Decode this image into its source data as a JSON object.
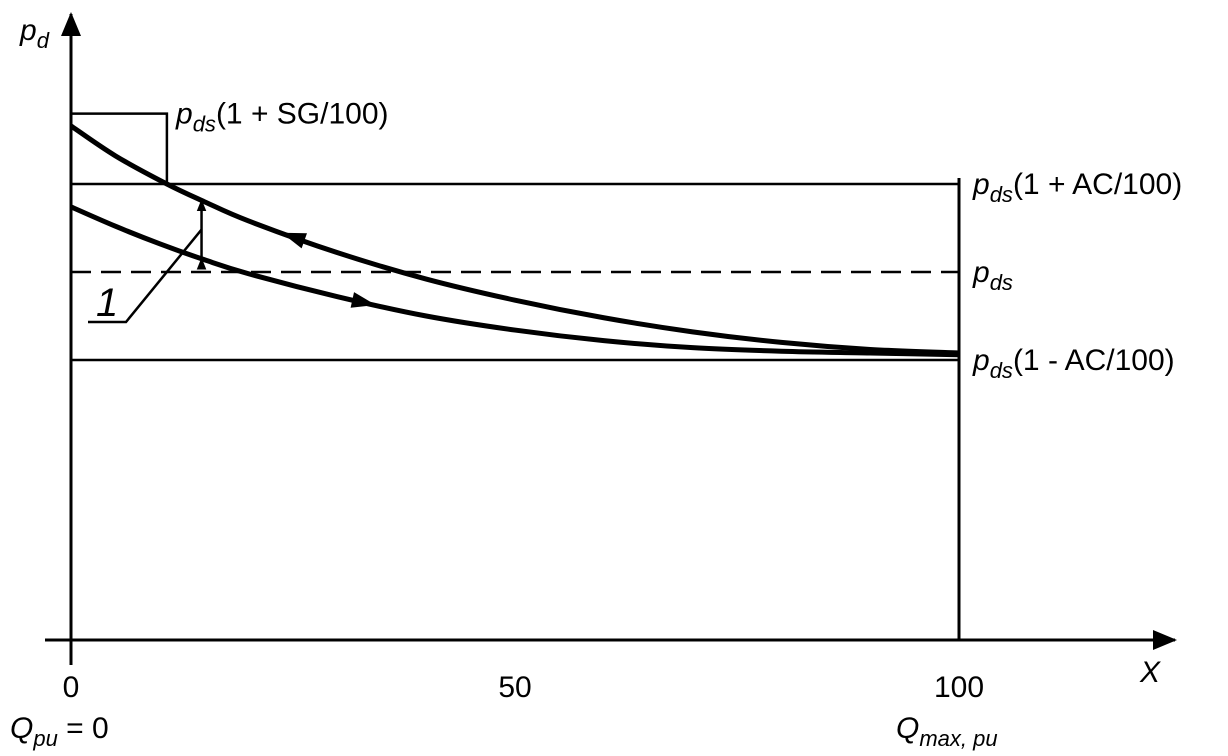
{
  "chart_data": {
    "type": "line",
    "ylabel": {
      "main": "p",
      "sub": "d"
    },
    "xlabel": "X",
    "x_ticks": [
      "0",
      "50",
      "100"
    ],
    "x_tick_values": [
      0,
      50,
      100
    ],
    "bottom_left_label": {
      "main": "Q",
      "sub": "pu",
      "rest": " =  0"
    },
    "bottom_right_label": {
      "main": "Q",
      "sub": "max, pu"
    },
    "xlim": [
      0,
      100
    ],
    "reference_lines": [
      {
        "key": "upper",
        "style": "solid",
        "value": 1.05,
        "label_main": "p",
        "label_sub": "ds",
        "label_rest": "(1 + AC/100)"
      },
      {
        "key": "setpoint",
        "style": "dashed",
        "value": 1.0,
        "label_main": "p",
        "label_sub": "ds",
        "label_rest": ""
      },
      {
        "key": "lower",
        "style": "solid",
        "value": 0.95,
        "label_main": "p",
        "label_sub": "ds",
        "label_rest": "(1 - AC/100)"
      }
    ],
    "surge_limit": {
      "value": 1.09,
      "x_end": 10.8,
      "label_main": "p",
      "label_sub": "ds",
      "label_rest": "(1 + SG/100)"
    },
    "series": [
      {
        "key": "decreasing-flow",
        "direction": "reverse",
        "x": [
          0,
          5,
          10.8,
          15,
          20,
          30,
          40,
          50,
          60,
          70,
          80,
          90,
          100
        ],
        "y": [
          1.083,
          1.066,
          1.05,
          1.04,
          1.029,
          1.011,
          0.996,
          0.984,
          0.974,
          0.966,
          0.96,
          0.956,
          0.954
        ]
      },
      {
        "key": "increasing-flow",
        "direction": "forward",
        "x": [
          0,
          5,
          10,
          15,
          20,
          30,
          40,
          50,
          60,
          70,
          80,
          90,
          100
        ],
        "y": [
          1.037,
          1.026,
          1.016,
          1.007,
          0.999,
          0.986,
          0.975,
          0.967,
          0.961,
          0.957,
          0.955,
          0.954,
          0.953
        ]
      }
    ],
    "annotation": {
      "text": "1",
      "at_x": 14.7
    },
    "grid": false
  }
}
